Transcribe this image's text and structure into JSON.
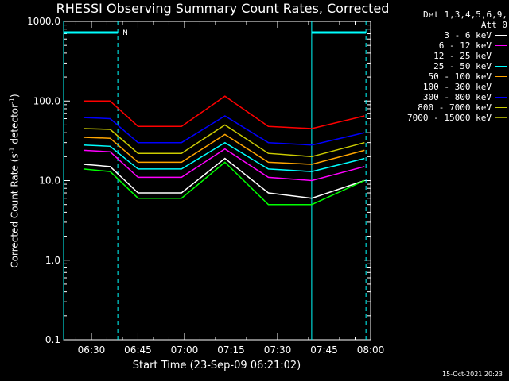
{
  "chart_data": {
    "type": "line",
    "title": "RHESSI Observing Summary Count Rates, Corrected",
    "xlabel": "Start Time (23-Sep-09 06:21:02)",
    "ylabel_prefix": "Corrected Count Rate (s",
    "ylabel_sup1": "-1",
    "ylabel_mid": " detector",
    "ylabel_sup2": "-1",
    "ylabel_suffix": ")",
    "yscale": "log",
    "ylim": [
      0.1,
      1000
    ],
    "xlim": [
      "06:21:02",
      "08:00"
    ],
    "xticks": [
      "06:30",
      "06:45",
      "07:00",
      "07:15",
      "07:30",
      "07:45",
      "08:00"
    ],
    "yticks": [
      "0.1",
      "1.0",
      "10.0",
      "100.0",
      "1000.0"
    ],
    "detectors_line1": "Det 1,3,4,5,6,9,",
    "detectors_line2": "Att 0",
    "night_marker_label": "N",
    "night_intervals": [
      [
        "06:21:02",
        "06:38:30"
      ],
      [
        "07:41:00",
        "07:58:30"
      ]
    ],
    "series": [
      {
        "name": "3 - 6 keV",
        "color": "#ffffff",
        "values": [
          [
            6.4,
            16
          ],
          [
            15,
            15
          ],
          [
            24,
            7
          ],
          [
            38,
            7
          ],
          [
            52,
            19
          ],
          [
            66,
            7
          ],
          [
            80,
            6
          ],
          [
            97,
            10
          ]
        ]
      },
      {
        "name": "6 - 12 keV",
        "color": "#ff00ff",
        "values": [
          [
            6.4,
            24
          ],
          [
            15,
            23
          ],
          [
            24,
            11
          ],
          [
            38,
            11
          ],
          [
            52,
            25
          ],
          [
            66,
            11
          ],
          [
            80,
            10
          ],
          [
            97,
            15
          ]
        ]
      },
      {
        "name": "12 - 25 keV",
        "color": "#00ff00",
        "values": [
          [
            6.4,
            14
          ],
          [
            15,
            13
          ],
          [
            24,
            6
          ],
          [
            38,
            6
          ],
          [
            52,
            17
          ],
          [
            66,
            5
          ],
          [
            80,
            5
          ],
          [
            97,
            10
          ]
        ]
      },
      {
        "name": "25 - 50 keV",
        "color": "#00ffff",
        "values": [
          [
            6.4,
            28
          ],
          [
            15,
            27
          ],
          [
            24,
            14
          ],
          [
            38,
            14
          ],
          [
            52,
            30
          ],
          [
            66,
            14
          ],
          [
            80,
            13
          ],
          [
            97,
            19
          ]
        ]
      },
      {
        "name": "50 - 100 keV",
        "color": "#ffa500",
        "values": [
          [
            6.4,
            35
          ],
          [
            15,
            34
          ],
          [
            24,
            17
          ],
          [
            38,
            17
          ],
          [
            52,
            38
          ],
          [
            66,
            17
          ],
          [
            80,
            16
          ],
          [
            97,
            24
          ]
        ]
      },
      {
        "name": "100 - 300 keV",
        "color": "#ff0000",
        "values": [
          [
            6.4,
            100
          ],
          [
            15,
            100
          ],
          [
            24,
            48
          ],
          [
            38,
            48
          ],
          [
            52,
            115
          ],
          [
            66,
            48
          ],
          [
            80,
            45
          ],
          [
            97,
            65
          ]
        ]
      },
      {
        "name": "300 - 800 keV",
        "color": "#0000ff",
        "values": [
          [
            6.4,
            62
          ],
          [
            15,
            60
          ],
          [
            24,
            30
          ],
          [
            38,
            30
          ],
          [
            52,
            65
          ],
          [
            66,
            30
          ],
          [
            80,
            28
          ],
          [
            97,
            40
          ]
        ]
      },
      {
        "name": "800 - 7000 keV",
        "color": "#cccc00",
        "values": [
          [
            6.4,
            45
          ],
          [
            15,
            44
          ],
          [
            24,
            22
          ],
          [
            38,
            22
          ],
          [
            52,
            50
          ],
          [
            66,
            22
          ],
          [
            80,
            20
          ],
          [
            97,
            30
          ]
        ]
      },
      {
        "name": "7000 - 15000 keV",
        "color": "#999900",
        "values": []
      }
    ]
  },
  "timestamp": "15-Oct-2021 20:23"
}
